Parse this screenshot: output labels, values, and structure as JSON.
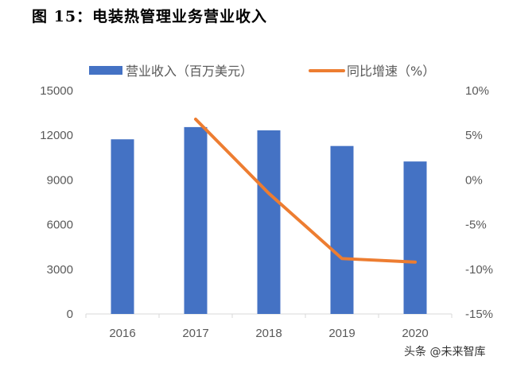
{
  "title": "图 15：电装热管理业务营业收入",
  "watermark": "头条 @未来智库",
  "chart_data": {
    "type": "bar+line",
    "categories": [
      "2016",
      "2017",
      "2018",
      "2019",
      "2020"
    ],
    "series": [
      {
        "name": "营业收入（百万美元）",
        "type": "bar",
        "axis": "left",
        "color": "#4472C4",
        "values": [
          11730,
          12550,
          12330,
          11280,
          10240
        ]
      },
      {
        "name": "同比增速（%）",
        "type": "line",
        "axis": "right",
        "color": "#ED7D31",
        "values": [
          null,
          6.8,
          -1.5,
          -8.8,
          -9.2
        ]
      }
    ],
    "left_axis": {
      "range": [
        0,
        15000
      ],
      "ticks": [
        "0",
        "3000",
        "6000",
        "9000",
        "12000",
        "15000"
      ]
    },
    "right_axis": {
      "range": [
        -15,
        10
      ],
      "ticks": [
        "-15%",
        "-10%",
        "-5%",
        "0%",
        "5%",
        "10%"
      ]
    },
    "grid": false,
    "legend": "top"
  }
}
